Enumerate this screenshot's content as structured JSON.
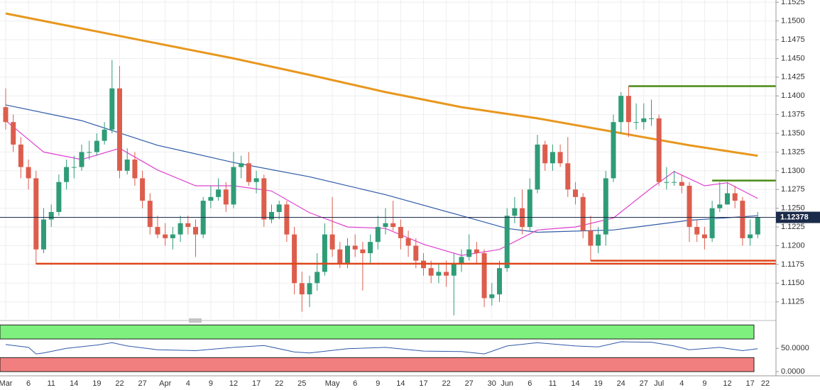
{
  "chart_data": {
    "type": "candlestick",
    "categories": [
      "Mar",
      null,
      null,
      "6",
      null,
      null,
      "11",
      null,
      null,
      "14",
      null,
      null,
      "19",
      null,
      null,
      "22",
      null,
      null,
      "27",
      null,
      null,
      "Apr",
      null,
      null,
      "4",
      null,
      null,
      "9",
      null,
      null,
      "12",
      null,
      null,
      "17",
      null,
      null,
      "22",
      null,
      null,
      "25",
      null,
      null,
      null,
      "May",
      null,
      null,
      "6",
      null,
      null,
      "9",
      null,
      null,
      "14",
      null,
      null,
      "17",
      null,
      null,
      "22",
      null,
      null,
      "27",
      null,
      null,
      "30",
      null,
      "Jun",
      null,
      null,
      "6",
      null,
      null,
      "11",
      null,
      null,
      "14",
      null,
      null,
      "19",
      null,
      null,
      "24",
      null,
      null,
      "27",
      null,
      "Jul",
      null,
      null,
      "4",
      null,
      null,
      "9",
      null,
      null,
      "12",
      null,
      null,
      "17",
      null,
      "22"
    ],
    "open": [
      1.1385,
      1.1365,
      1.1335,
      1.1305,
      1.129,
      1.1195,
      1.1235,
      1.1245,
      1.1285,
      1.1305,
      1.1305,
      1.1325,
      1.1325,
      1.134,
      1.1355,
      1.141,
      1.13,
      1.1315,
      1.129,
      1.126,
      1.1225,
      1.1215,
      1.121,
      1.1215,
      1.123,
      1.1225,
      1.1215,
      1.126,
      1.1265,
      1.1275,
      1.1255,
      1.1305,
      1.131,
      1.1285,
      1.129,
      1.1235,
      1.1245,
      1.1255,
      1.1215,
      1.115,
      1.1135,
      1.115,
      1.1165,
      1.1215,
      1.1195,
      1.1175,
      1.12,
      1.1195,
      1.119,
      1.1205,
      1.1225,
      1.123,
      1.1225,
      1.121,
      1.12,
      1.118,
      1.117,
      1.116,
      1.1165,
      1.116,
      1.1175,
      1.1185,
      1.1195,
      1.119,
      1.113,
      1.1135,
      1.117,
      1.124,
      1.125,
      1.1225,
      1.1275,
      1.1335,
      1.131,
      1.1325,
      1.131,
      1.1275,
      1.1265,
      1.122,
      1.12,
      1.1215,
      1.129,
      1.1365,
      1.14,
      1.1365,
      1.1365,
      1.137,
      1.137,
      1.1285,
      1.1285,
      1.1285,
      1.128,
      1.1225,
      1.1215,
      1.121,
      1.125,
      1.1255,
      1.127,
      1.126,
      1.121,
      1.1215,
      null
    ],
    "high": [
      1.141,
      1.1375,
      1.1345,
      1.1315,
      1.13,
      1.125,
      1.1255,
      1.1295,
      1.1315,
      1.132,
      1.1335,
      1.134,
      1.135,
      1.1365,
      1.1448,
      1.144,
      1.133,
      1.1325,
      1.13,
      1.127,
      1.124,
      1.123,
      1.1225,
      1.124,
      1.124,
      1.1235,
      1.1265,
      1.128,
      1.129,
      1.1285,
      1.1325,
      1.132,
      1.1325,
      1.13,
      1.1295,
      1.1255,
      1.126,
      1.126,
      1.1225,
      1.1165,
      1.116,
      1.119,
      1.123,
      1.1265,
      1.1205,
      1.121,
      1.1215,
      1.1205,
      1.1215,
      1.124,
      1.125,
      1.126,
      1.1235,
      1.122,
      1.121,
      1.119,
      1.118,
      1.1175,
      1.118,
      1.119,
      1.1195,
      1.1215,
      1.1205,
      1.1195,
      1.115,
      1.118,
      1.125,
      1.1265,
      1.1275,
      1.129,
      1.1348,
      1.134,
      1.1335,
      1.1335,
      1.1345,
      1.1285,
      1.127,
      1.124,
      1.1225,
      1.13,
      1.1375,
      1.1405,
      1.1413,
      1.139,
      1.139,
      1.1395,
      1.1375,
      1.1305,
      1.13,
      1.1295,
      1.1285,
      1.1235,
      1.1225,
      1.126,
      1.1285,
      1.1285,
      1.128,
      1.1265,
      1.1235,
      1.1245,
      null
    ],
    "low": [
      1.1355,
      1.1325,
      1.129,
      1.1275,
      1.1175,
      1.119,
      1.1225,
      1.124,
      1.1275,
      1.129,
      1.13,
      1.1315,
      1.132,
      1.1335,
      1.135,
      1.129,
      1.1295,
      1.128,
      1.125,
      1.1215,
      1.121,
      1.12,
      1.1195,
      1.1205,
      1.1215,
      1.1185,
      1.121,
      1.125,
      1.126,
      1.1245,
      1.125,
      1.129,
      1.128,
      1.127,
      1.1225,
      1.123,
      1.1235,
      1.1205,
      1.1135,
      1.1112,
      1.1118,
      1.114,
      1.116,
      1.1185,
      1.117,
      1.117,
      1.1185,
      1.114,
      1.1175,
      1.1195,
      1.1215,
      1.122,
      1.1195,
      1.1185,
      1.117,
      1.116,
      1.115,
      1.115,
      1.1145,
      1.1107,
      1.1165,
      1.118,
      1.1175,
      1.1118,
      1.112,
      1.1125,
      1.1165,
      1.123,
      1.1215,
      1.122,
      1.127,
      1.13,
      1.13,
      1.1305,
      1.1265,
      1.1255,
      1.121,
      1.118,
      1.119,
      1.12,
      1.1285,
      1.135,
      1.1345,
      1.1355,
      1.1355,
      1.136,
      1.128,
      1.1275,
      1.128,
      1.127,
      1.1205,
      1.1205,
      1.1195,
      1.1205,
      1.1245,
      1.1255,
      1.125,
      1.12,
      1.12,
      1.121,
      null
    ],
    "close": [
      1.1365,
      1.1335,
      1.1305,
      1.129,
      1.1195,
      1.1235,
      1.1245,
      1.1285,
      1.1305,
      1.1305,
      1.1325,
      1.1325,
      1.134,
      1.1355,
      1.141,
      1.13,
      1.1315,
      1.129,
      1.126,
      1.1225,
      1.1215,
      1.121,
      1.1215,
      1.123,
      1.1225,
      1.1215,
      1.126,
      1.1265,
      1.1275,
      1.1255,
      1.1305,
      1.131,
      1.1285,
      1.129,
      1.1235,
      1.1245,
      1.1255,
      1.1215,
      1.115,
      1.1135,
      1.115,
      1.1165,
      1.1215,
      1.1195,
      1.1175,
      1.12,
      1.1195,
      1.119,
      1.1205,
      1.1225,
      1.123,
      1.1225,
      1.121,
      1.12,
      1.118,
      1.117,
      1.116,
      1.1165,
      1.116,
      1.1175,
      1.1185,
      1.1195,
      1.119,
      1.113,
      1.1135,
      1.117,
      1.124,
      1.125,
      1.1225,
      1.1275,
      1.1335,
      1.131,
      1.1325,
      1.131,
      1.1275,
      1.1265,
      1.122,
      1.12,
      1.1215,
      1.129,
      1.1365,
      1.14,
      1.1365,
      1.1365,
      1.137,
      1.137,
      1.1285,
      1.1285,
      1.1285,
      1.128,
      1.1225,
      1.1215,
      1.121,
      1.125,
      1.1255,
      1.127,
      1.126,
      1.121,
      1.1215,
      1.1238,
      null
    ],
    "up_color": "#2f9c78",
    "down_color": "#dd5d4d",
    "ylim": [
      1.1102,
      1.1528
    ],
    "yticks": [
      {
        "value": 1.1125,
        "label": "1.1125"
      },
      {
        "value": 1.115,
        "label": "1.1150"
      },
      {
        "value": 1.1175,
        "label": "1.1175"
      },
      {
        "value": 1.12,
        "label": "1.1200"
      },
      {
        "value": 1.1225,
        "label": "1.1225"
      },
      {
        "value": 1.125,
        "label": "1.1250"
      },
      {
        "value": 1.1275,
        "label": "1.1275"
      },
      {
        "value": 1.13,
        "label": "1.1300"
      },
      {
        "value": 1.1325,
        "label": "1.1325"
      },
      {
        "value": 1.135,
        "label": "1.1350"
      },
      {
        "value": 1.1375,
        "label": "1.1375"
      },
      {
        "value": 1.14,
        "label": "1.1400"
      },
      {
        "value": 1.1425,
        "label": "1.1425"
      },
      {
        "value": 1.145,
        "label": "1.1450"
      },
      {
        "value": 1.1475,
        "label": "1.1475"
      },
      {
        "value": 1.15,
        "label": "1.1500"
      },
      {
        "value": 1.1525,
        "label": "1.1525"
      }
    ],
    "grid": true,
    "last_price": 1.12378,
    "overlays": [
      {
        "color": "#e8971e",
        "x": [
          0,
          10,
          20,
          30,
          40,
          50,
          60,
          70,
          80,
          90,
          99
        ],
        "values": [
          1.151,
          1.149,
          1.147,
          1.145,
          1.1428,
          1.1405,
          1.1385,
          1.137,
          1.1352,
          1.1334,
          1.132
        ]
      },
      {
        "color": "#2f5aa8",
        "x": [
          0,
          10,
          20,
          30,
          40,
          50,
          60,
          66,
          70,
          80,
          90,
          99
        ],
        "values": [
          1.1388,
          1.1367,
          1.1334,
          1.1311,
          1.1292,
          1.1268,
          1.124,
          1.1223,
          1.1218,
          1.1221,
          1.1234,
          1.124
        ]
      },
      {
        "color": "#e040d0",
        "x": [
          0,
          5,
          10,
          15,
          20,
          25,
          30,
          35,
          40,
          45,
          50,
          55,
          60,
          65,
          70,
          75,
          80,
          85,
          88,
          92,
          95,
          99
        ],
        "values": [
          1.1367,
          1.1325,
          1.1315,
          1.133,
          1.1301,
          1.128,
          1.128,
          1.1273,
          1.1244,
          1.1225,
          1.1223,
          1.1202,
          1.1187,
          1.1195,
          1.1221,
          1.1225,
          1.1237,
          1.1277,
          1.1299,
          1.128,
          1.1284,
          1.1263
        ]
      }
    ],
    "levels": [
      {
        "value": 1.1413,
        "from": 82,
        "color": "#4a8a14"
      },
      {
        "value": 1.1287,
        "from": 93,
        "color": "#4a8a14"
      },
      {
        "value": 1.1176,
        "from": 4,
        "color": "#e0461a"
      },
      {
        "value": 1.118,
        "from": 77,
        "color": "#e0461a"
      }
    ],
    "indicator": {
      "type": "line",
      "color": "#2f5aa8",
      "ylim": [
        -9,
        105
      ],
      "yticks": [
        {
          "value": 50,
          "label": "50.0000"
        },
        {
          "value": 0,
          "label": "0.0000"
        }
      ],
      "zones": [
        {
          "from": 70,
          "to": 100,
          "color": "#7ef07e"
        },
        {
          "from": 0,
          "to": 30,
          "color": "#f27f7f"
        }
      ],
      "x": [
        0,
        3,
        4,
        5,
        8,
        12,
        14,
        16,
        20,
        25,
        30,
        34,
        38,
        40,
        45,
        50,
        55,
        60,
        63,
        66,
        70,
        75,
        78,
        81,
        85,
        88,
        90,
        94,
        97,
        99
      ],
      "values": [
        58,
        52,
        38,
        40,
        50,
        57,
        62,
        55,
        47,
        45,
        52,
        56,
        42,
        40,
        49,
        52,
        44,
        43,
        38,
        55,
        62,
        55,
        53,
        64,
        63,
        55,
        47,
        52,
        45,
        49
      ]
    }
  }
}
